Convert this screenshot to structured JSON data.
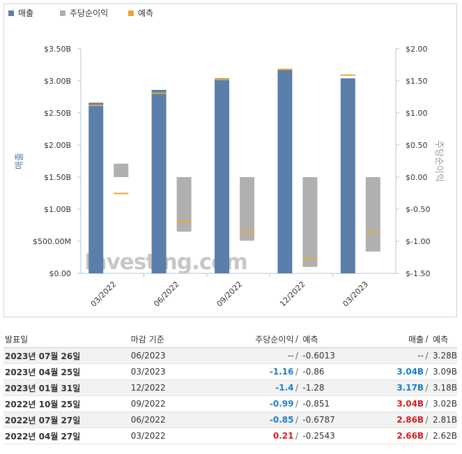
{
  "legend": [
    {
      "label": "매출",
      "color": "#5b7fab"
    },
    {
      "label": "주당순이익",
      "color": "#b0b0b0"
    },
    {
      "label": "예측",
      "color": "#e8a830"
    }
  ],
  "watermark": "Investing.com",
  "chart_data": {
    "type": "bar",
    "categories": [
      "03/2022",
      "06/2022",
      "09/2022",
      "12/2022",
      "03/2023"
    ],
    "y_left": {
      "label": "매출",
      "ticks": [
        "$0.00",
        "$500.00M",
        "$1.00B",
        "$1.50B",
        "$2.00B",
        "$2.50B",
        "$3.00B",
        "$3.50B"
      ],
      "range": [
        0,
        3.5
      ],
      "unit": "B"
    },
    "y_right": {
      "label": "주당순이익",
      "ticks": [
        "$-1.50",
        "$-1.00",
        "$-0.50",
        "$0.00",
        "$0.50",
        "$1.00",
        "$1.50",
        "$2.00"
      ],
      "range": [
        -1.5,
        2.0
      ]
    },
    "series": [
      {
        "name": "매출",
        "values": [
          2.66,
          2.86,
          3.04,
          3.17,
          3.04
        ]
      },
      {
        "name": "매출 예측",
        "values": [
          2.62,
          2.81,
          3.02,
          3.18,
          3.09
        ]
      },
      {
        "name": "주당순이익",
        "values": [
          0.21,
          -0.85,
          -0.99,
          -1.4,
          -1.16
        ]
      },
      {
        "name": "주당순이익 예측",
        "values": [
          -0.2543,
          -0.6787,
          -0.851,
          -1.28,
          -0.86
        ]
      }
    ],
    "grid": false
  },
  "table": {
    "headers": {
      "date": "발표일",
      "period": "마감 기준",
      "eps": "주당순이익",
      "slash": "/",
      "eps_forecast": "예측",
      "rev": "매출",
      "rev_forecast": "예측"
    },
    "rows": [
      {
        "date": "2023년 07월 26일",
        "period": "06/2023",
        "eps": "--",
        "eps_forecast": "-0.6013",
        "rev": "--",
        "rev_forecast": "3.28B",
        "eps_color": "neu",
        "rev_color": "neu"
      },
      {
        "date": "2023년 04월 25일",
        "period": "03/2023",
        "eps": "-1.16",
        "eps_forecast": "-0.86",
        "rev": "3.04B",
        "rev_forecast": "3.09B",
        "eps_color": "neg",
        "rev_color": "neg"
      },
      {
        "date": "2023년 01월 31일",
        "period": "12/2022",
        "eps": "-1.4",
        "eps_forecast": "-1.28",
        "rev": "3.17B",
        "rev_forecast": "3.18B",
        "eps_color": "neg",
        "rev_color": "neg"
      },
      {
        "date": "2022년 10월 25일",
        "period": "09/2022",
        "eps": "-0.99",
        "eps_forecast": "-0.851",
        "rev": "3.04B",
        "rev_forecast": "3.02B",
        "eps_color": "neg",
        "rev_color": "pos"
      },
      {
        "date": "2022년 07월 27일",
        "period": "06/2022",
        "eps": "-0.85",
        "eps_forecast": "-0.6787",
        "rev": "2.86B",
        "rev_forecast": "2.81B",
        "eps_color": "neg",
        "rev_color": "pos"
      },
      {
        "date": "2022년 04월 27일",
        "period": "03/2022",
        "eps": "0.21",
        "eps_forecast": "-0.2543",
        "rev": "2.66B",
        "rev_forecast": "2.62B",
        "eps_color": "pos",
        "rev_color": "pos"
      }
    ]
  }
}
